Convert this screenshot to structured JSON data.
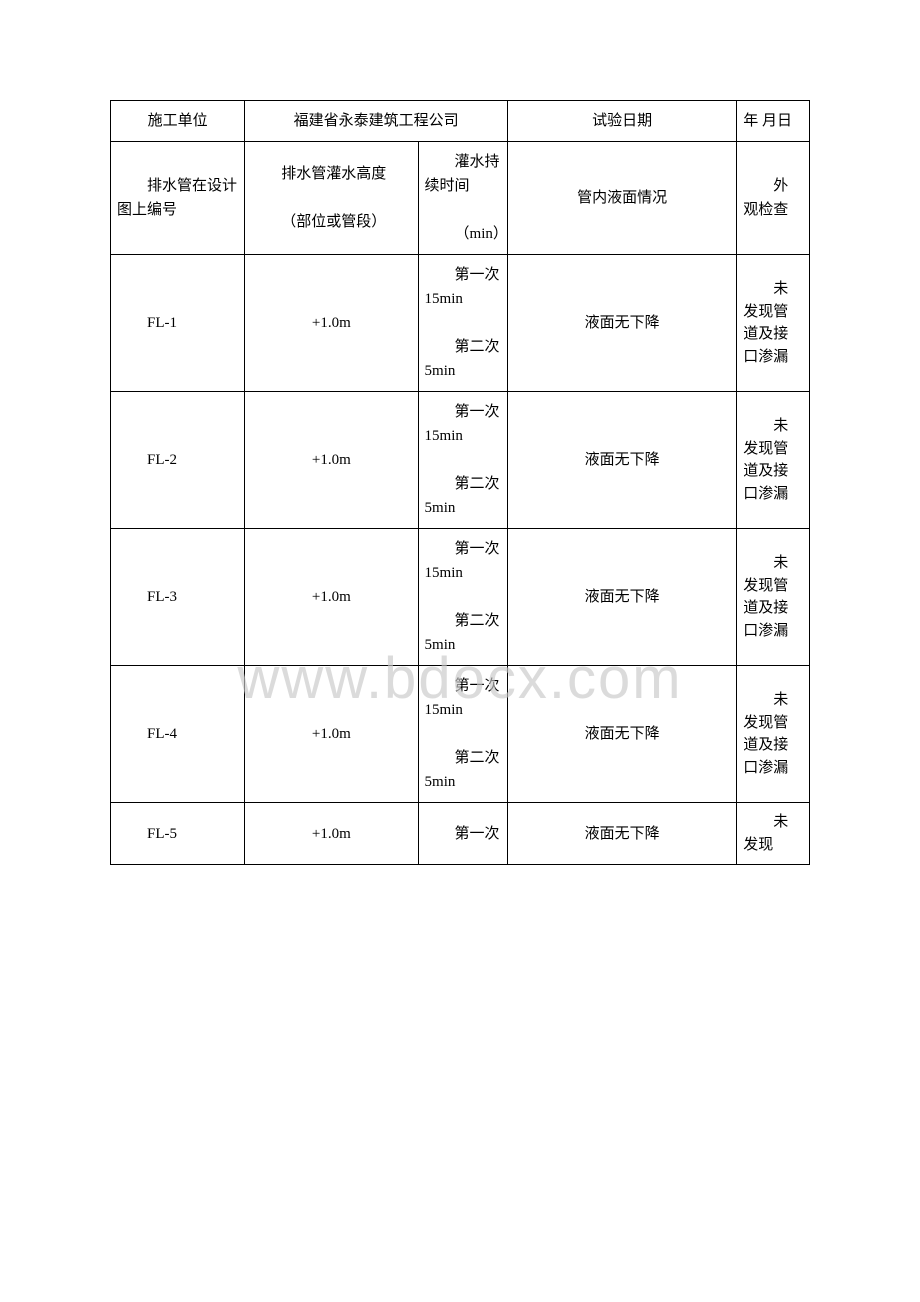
{
  "header": {
    "construction_unit_label": "施工单位",
    "construction_unit_value": "福建省永泰建筑工程公司",
    "test_date_label": "试验日期",
    "test_date_value": "年 月日"
  },
  "columns": {
    "c1": "排水管在设计图上编号",
    "c2_l1": "排水管灌水高度",
    "c2_l2": "（部位或管段）",
    "c3_l1": "灌水持续时间",
    "c3_l2": "（min）",
    "c4": "管内液面情况",
    "c5": "外观检查"
  },
  "rows": [
    {
      "id": "FL-1",
      "height": "+1.0m",
      "d1": "第一次15min",
      "d2": "第二次5min",
      "liquid": "液面无下降",
      "visual": "未发现管道及接口渗漏"
    },
    {
      "id": "FL-2",
      "height": "+1.0m",
      "d1": "第一次15min",
      "d2": "第二次5min",
      "liquid": "液面无下降",
      "visual": "未发现管道及接口渗漏"
    },
    {
      "id": "FL-3",
      "height": "+1.0m",
      "d1": "第一次15min",
      "d2": "第二次5min",
      "liquid": "液面无下降",
      "visual": "未发现管道及接口渗漏"
    },
    {
      "id": "FL-4",
      "height": "+1.0m",
      "d1": "第一次15min",
      "d2": "第二次5min",
      "liquid": "液面无下降",
      "visual": "未发现管道及接口渗漏"
    },
    {
      "id": "FL-5",
      "height": "+1.0m",
      "d1": "第一次",
      "d2": "",
      "liquid": "液面无下降",
      "visual": "未发现"
    }
  ],
  "watermark": "www.bdocx.com"
}
